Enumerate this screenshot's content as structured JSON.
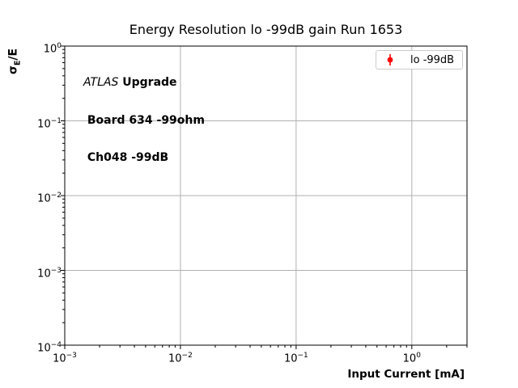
{
  "figure": {
    "title": "Energy Resolution lo -99dB gain Run 1653",
    "annotation": {
      "line1_italic": "ATLAS",
      "line1_bold": " Upgrade",
      "line2": " Board 634 -99ohm",
      "line3": " Ch048 -99dB"
    },
    "legend": {
      "label": "lo -99dB",
      "marker": "errorbar-point-icon",
      "marker_color": "#ff0000"
    }
  },
  "chart_data": {
    "type": "scatter",
    "title": "Energy Resolution lo -99dB gain Run 1653",
    "xlabel": "Input Current [mA]",
    "ylabel": "σE/E",
    "ylabel_parts": {
      "prefix": "σ",
      "sub": "E",
      "suffix": "/E"
    },
    "x_scale": "log",
    "y_scale": "log",
    "xlim": [
      0.001,
      3
    ],
    "ylim": [
      0.0001,
      1
    ],
    "x_tick_exponents": [
      -3,
      -2,
      -1,
      0
    ],
    "y_tick_exponents": [
      0,
      -1,
      -2,
      -3,
      -4
    ],
    "grid": "major-only",
    "grid_color": "#b0b0b0",
    "axis_color": "#000000",
    "legend_position": "upper right",
    "series": [
      {
        "name": "lo -99dB",
        "color": "#ff0000",
        "marker": "errorbar",
        "x": [],
        "y": []
      }
    ]
  }
}
